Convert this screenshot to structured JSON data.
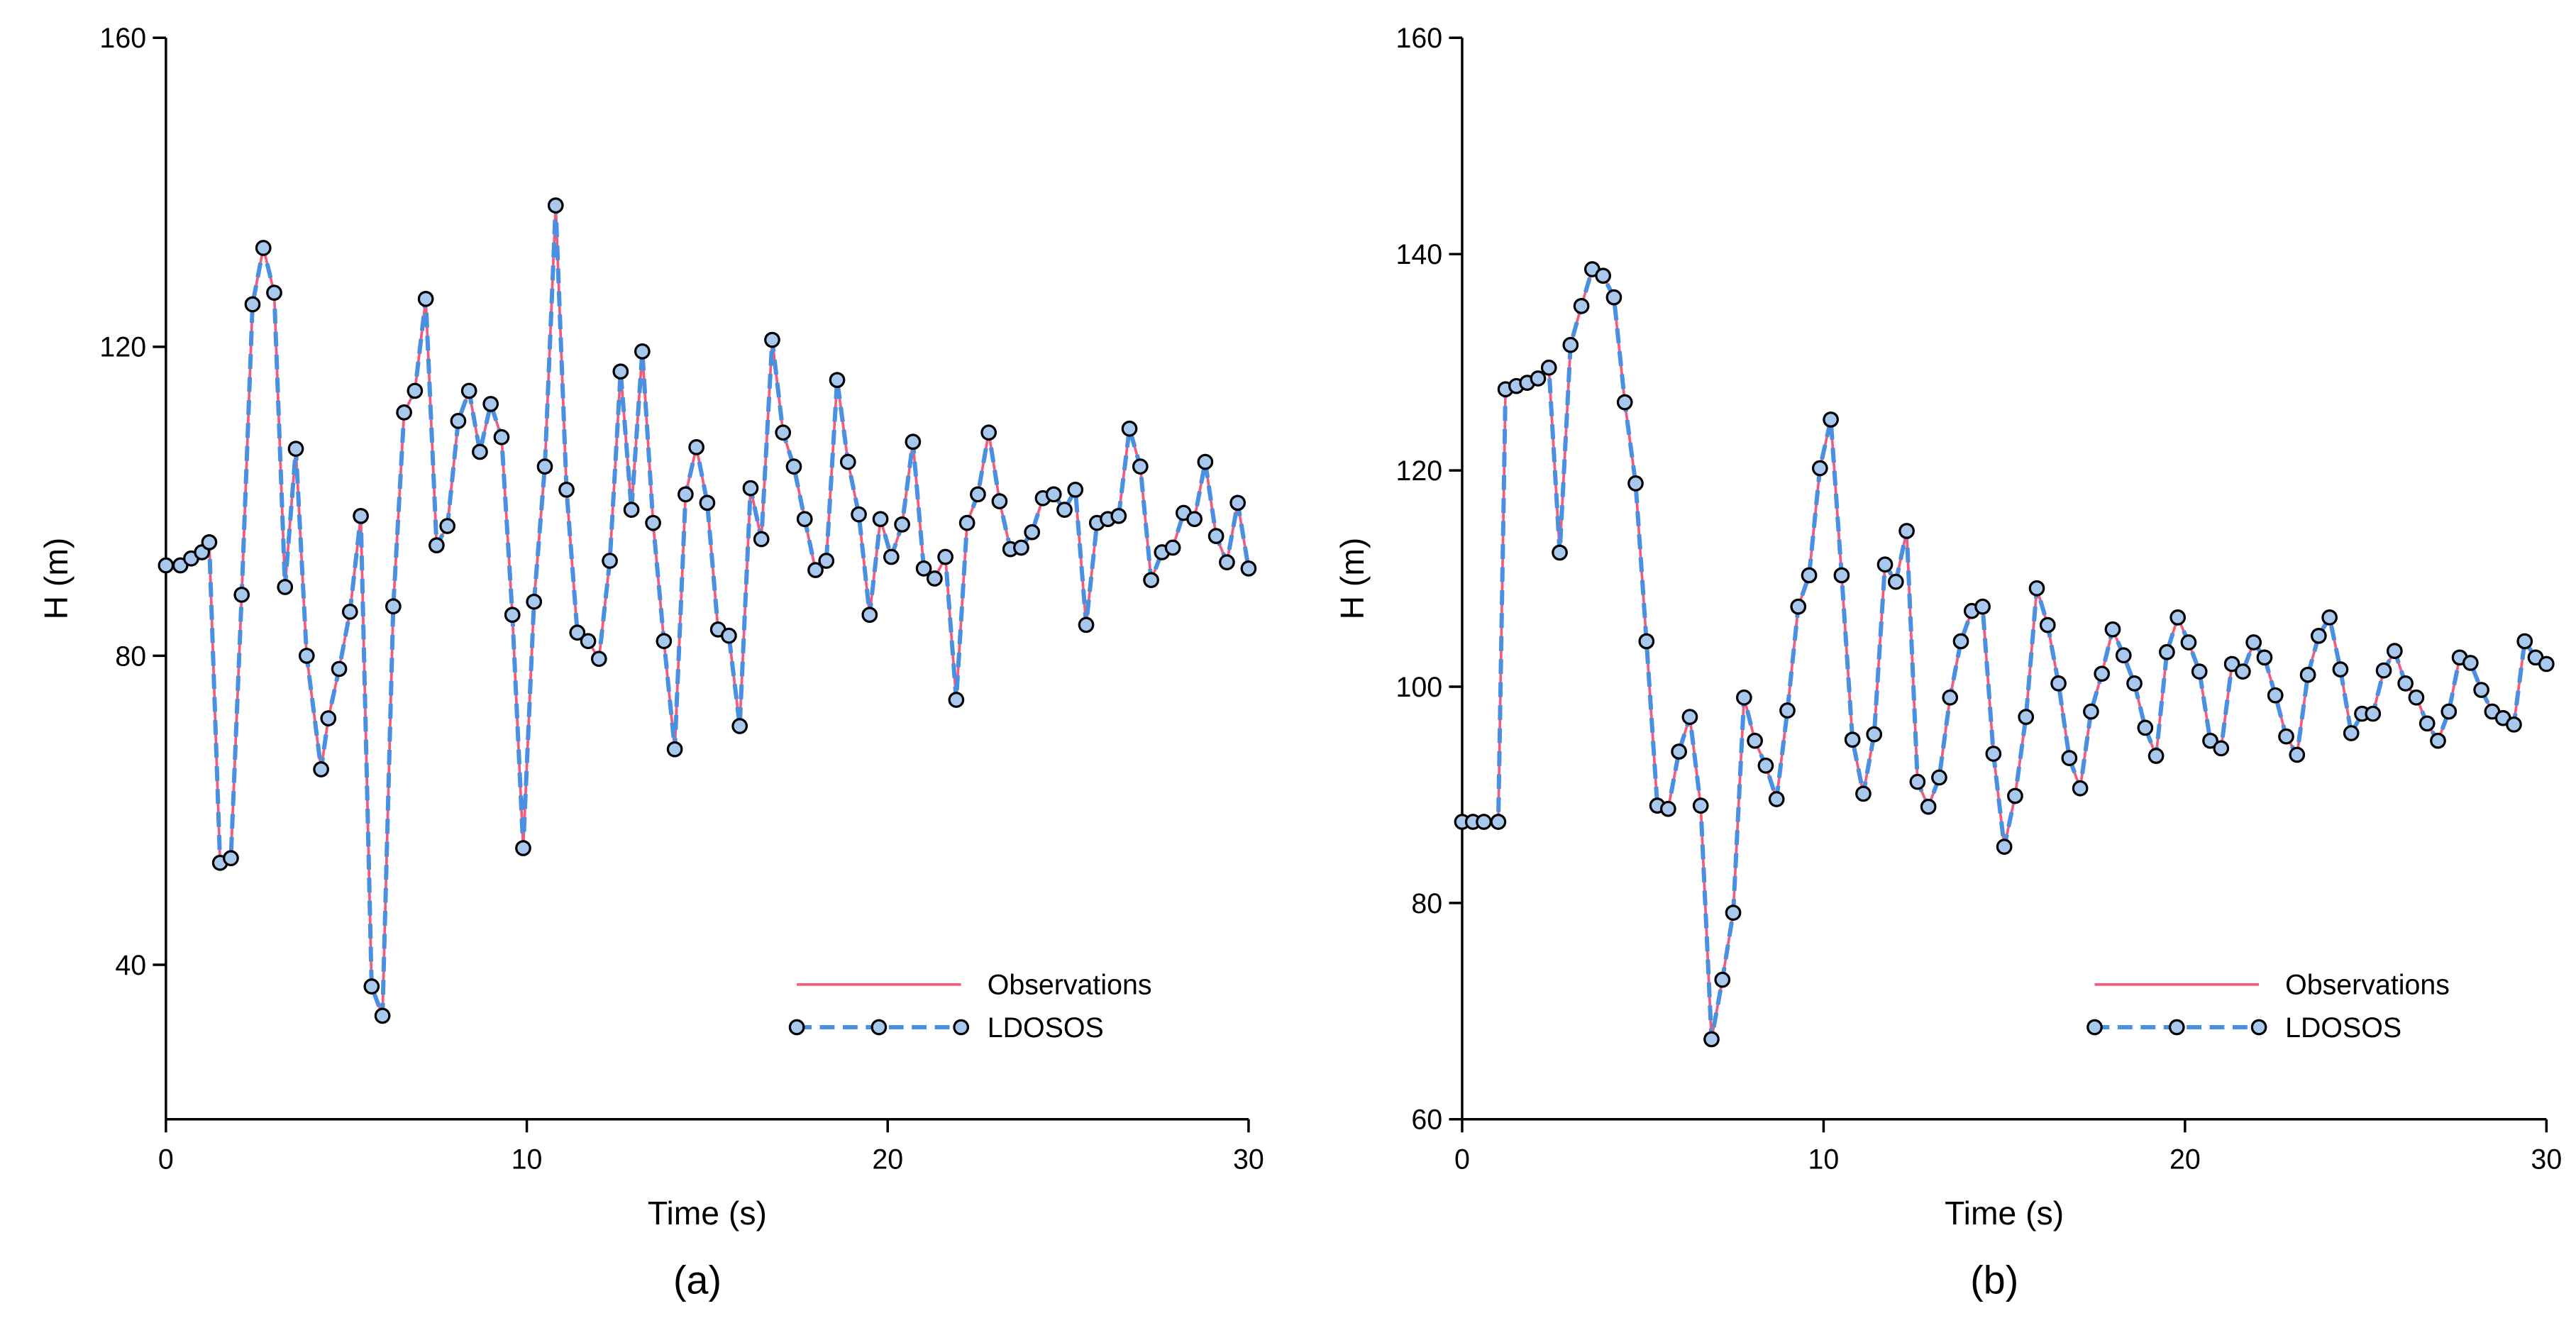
{
  "chart_data": [
    {
      "type": "line",
      "xlabel": "Time (s)",
      "ylabel": "H (m)",
      "caption": "(a)",
      "legend": "lower right",
      "xlim": [
        0,
        30
      ],
      "xticks": [
        0,
        10,
        20,
        30
      ],
      "ylim": [
        20,
        160
      ],
      "yticks": [
        40,
        80,
        120,
        160
      ],
      "x": [
        0,
        0.4,
        0.7,
        1.0,
        1.2,
        1.5,
        1.8,
        2.1,
        2.4,
        2.7,
        3.0,
        3.3,
        3.6,
        3.9,
        4.3,
        4.5,
        4.8,
        5.1,
        5.4,
        5.7,
        6.0,
        6.3,
        6.6,
        6.9,
        7.2,
        7.5,
        7.8,
        8.1,
        8.4,
        8.7,
        9.0,
        9.3,
        9.6,
        9.9,
        10.2,
        10.5,
        10.8,
        11.1,
        11.4,
        11.7,
        12.0,
        12.3,
        12.6,
        12.9,
        13.2,
        13.5,
        13.8,
        14.1,
        14.4,
        14.7,
        15.0,
        15.3,
        15.6,
        15.9,
        16.2,
        16.5,
        16.8,
        17.1,
        17.4,
        17.7,
        18.0,
        18.3,
        18.6,
        18.9,
        19.2,
        19.5,
        19.8,
        20.1,
        20.4,
        20.7,
        21.0,
        21.3,
        21.6,
        21.9,
        22.2,
        22.5,
        22.8,
        23.1,
        23.4,
        23.7,
        24.0,
        24.3,
        24.6,
        24.9,
        25.2,
        25.5,
        25.8,
        26.1,
        26.4,
        26.7,
        27.0,
        27.3,
        27.6,
        27.9,
        28.2,
        28.5,
        28.8,
        29.1,
        29.4,
        29.7,
        30.0
      ],
      "series": [
        {
          "name": "Observations",
          "color": "#f25c7c",
          "line_style": "solid",
          "values": [
            91.7,
            91.7,
            92.6,
            93.4,
            94.7,
            53.2,
            53.8,
            87.9,
            125.5,
            132.8,
            127,
            88.9,
            106.8,
            80,
            65.3,
            71.9,
            78.3,
            85.7,
            98.1,
            37.2,
            33.4,
            86.4,
            111.5,
            114.3,
            126.2,
            94.3,
            96.8,
            110.4,
            114.3,
            106.4,
            112.6,
            108.3,
            85.3,
            55.1,
            87,
            104.5,
            138.3,
            101.5,
            83,
            81.9,
            79.6,
            92.3,
            116.8,
            98.9,
            119.4,
            97.2,
            81.9,
            67.9,
            100.9,
            107,
            99.8,
            83.4,
            82.6,
            70.9,
            101.7,
            95.1,
            120.9,
            108.9,
            104.5,
            97.7,
            91.1,
            92.3,
            115.7,
            105.1,
            98.3,
            85.3,
            97.7,
            92.8,
            97,
            107.7,
            91.3,
            90,
            92.8,
            74.3,
            97.2,
            100.9,
            108.9,
            100,
            93.8,
            94,
            96,
            100.4,
            100.9,
            98.9,
            101.5,
            84,
            97.2,
            97.7,
            98.1,
            109.4,
            104.5,
            89.8,
            93.4,
            94,
            98.5,
            97.7,
            105.1,
            95.5,
            92.1,
            99.8,
            91.3
          ]
        },
        {
          "name": "LDOSOS",
          "color": "#4a90e2",
          "line_style": "dashed",
          "marker": "circle",
          "values": [
            91.7,
            91.7,
            92.6,
            93.4,
            94.7,
            53.2,
            53.8,
            87.9,
            125.5,
            132.8,
            127,
            88.9,
            106.8,
            80,
            65.3,
            71.9,
            78.3,
            85.7,
            98.1,
            37.2,
            33.4,
            86.4,
            111.5,
            114.3,
            126.2,
            94.3,
            96.8,
            110.4,
            114.3,
            106.4,
            112.6,
            108.3,
            85.3,
            55.1,
            87,
            104.5,
            138.3,
            101.5,
            83,
            81.9,
            79.6,
            92.3,
            116.8,
            98.9,
            119.4,
            97.2,
            81.9,
            67.9,
            100.9,
            107,
            99.8,
            83.4,
            82.6,
            70.9,
            101.7,
            95.1,
            120.9,
            108.9,
            104.5,
            97.7,
            91.1,
            92.3,
            115.7,
            105.1,
            98.3,
            85.3,
            97.7,
            92.8,
            97,
            107.7,
            91.3,
            90,
            92.8,
            74.3,
            97.2,
            100.9,
            108.9,
            100,
            93.8,
            94,
            96,
            100.4,
            100.9,
            98.9,
            101.5,
            84,
            97.2,
            97.7,
            98.1,
            109.4,
            104.5,
            89.8,
            93.4,
            94,
            98.5,
            97.7,
            105.1,
            95.5,
            92.1,
            99.8,
            91.3
          ]
        }
      ]
    },
    {
      "type": "line",
      "xlabel": "Time (s)",
      "ylabel": "H (m)",
      "caption": "(b)",
      "legend": "lower right",
      "xlim": [
        0,
        30
      ],
      "xticks": [
        0,
        10,
        20,
        30
      ],
      "ylim": [
        60,
        160
      ],
      "yticks": [
        60,
        80,
        100,
        120,
        140,
        160
      ],
      "x": [
        0,
        0.3,
        0.6,
        1.0,
        1.2,
        1.5,
        1.8,
        2.1,
        2.4,
        2.7,
        3.0,
        3.3,
        3.6,
        3.9,
        4.2,
        4.5,
        4.8,
        5.1,
        5.4,
        5.7,
        6.0,
        6.3,
        6.6,
        6.9,
        7.2,
        7.5,
        7.8,
        8.1,
        8.4,
        8.7,
        9.0,
        9.3,
        9.6,
        9.9,
        10.2,
        10.5,
        10.8,
        11.1,
        11.4,
        11.7,
        12.0,
        12.3,
        12.6,
        12.9,
        13.2,
        13.5,
        13.8,
        14.1,
        14.4,
        14.7,
        15.0,
        15.3,
        15.6,
        15.9,
        16.2,
        16.5,
        16.8,
        17.1,
        17.4,
        17.7,
        18.0,
        18.3,
        18.6,
        18.9,
        19.2,
        19.5,
        19.8,
        20.1,
        20.4,
        20.7,
        21.0,
        21.3,
        21.6,
        21.9,
        22.2,
        22.5,
        22.8,
        23.1,
        23.4,
        23.7,
        24.0,
        24.3,
        24.6,
        24.9,
        25.2,
        25.5,
        25.8,
        26.1,
        26.4,
        26.7,
        27.0,
        27.3,
        27.6,
        27.9,
        28.2,
        28.5,
        28.8,
        29.1,
        29.4,
        29.7,
        30.0
      ],
      "series": [
        {
          "name": "Observations",
          "color": "#f25c7c",
          "line_style": "solid",
          "values": [
            87.5,
            87.5,
            87.5,
            87.5,
            127.5,
            127.8,
            128.1,
            128.5,
            129.5,
            112.4,
            131.6,
            135.2,
            138.6,
            138,
            136,
            126.3,
            118.8,
            104.2,
            89,
            88.7,
            94,
            97.2,
            89,
            67.4,
            72.9,
            79.1,
            99,
            95,
            92.7,
            89.6,
            97.8,
            107.4,
            110.3,
            120.2,
            124.7,
            110.3,
            95.1,
            90.1,
            95.6,
            111.3,
            109.7,
            114.4,
            91.2,
            88.9,
            91.6,
            99,
            104.2,
            107,
            107.4,
            93.8,
            85.2,
            89.9,
            97.2,
            109.1,
            105.7,
            100.3,
            93.4,
            90.6,
            97.7,
            101.2,
            105.3,
            102.9,
            100.3,
            96.2,
            93.6,
            103.2,
            106.4,
            104.1,
            101.4,
            95,
            94.3,
            102.1,
            101.4,
            104.1,
            102.7,
            99.2,
            95.4,
            93.7,
            101.1,
            104.7,
            106.4,
            101.6,
            95.7,
            97.5,
            97.5,
            101.5,
            103.3,
            100.3,
            99,
            96.6,
            95,
            97.7,
            102.7,
            102.2,
            99.7,
            97.7,
            97.1,
            96.5,
            104.2,
            102.7,
            102.1
          ]
        },
        {
          "name": "LDOSOS",
          "color": "#4a90e2",
          "line_style": "dashed",
          "marker": "circle",
          "values": [
            87.5,
            87.5,
            87.5,
            87.5,
            127.5,
            127.8,
            128.1,
            128.5,
            129.5,
            112.4,
            131.6,
            135.2,
            138.6,
            138,
            136,
            126.3,
            118.8,
            104.2,
            89,
            88.7,
            94,
            97.2,
            89,
            67.4,
            72.9,
            79.1,
            99,
            95,
            92.7,
            89.6,
            97.8,
            107.4,
            110.3,
            120.2,
            124.7,
            110.3,
            95.1,
            90.1,
            95.6,
            111.3,
            109.7,
            114.4,
            91.2,
            88.9,
            91.6,
            99,
            104.2,
            107,
            107.4,
            93.8,
            85.2,
            89.9,
            97.2,
            109.1,
            105.7,
            100.3,
            93.4,
            90.6,
            97.7,
            101.2,
            105.3,
            102.9,
            100.3,
            96.2,
            93.6,
            103.2,
            106.4,
            104.1,
            101.4,
            95,
            94.3,
            102.1,
            101.4,
            104.1,
            102.7,
            99.2,
            95.4,
            93.7,
            101.1,
            104.7,
            106.4,
            101.6,
            95.7,
            97.5,
            97.5,
            101.5,
            103.3,
            100.3,
            99,
            96.6,
            95,
            97.7,
            102.7,
            102.2,
            99.7,
            97.7,
            97.1,
            96.5,
            104.2,
            102.7,
            102.1
          ]
        }
      ]
    }
  ]
}
